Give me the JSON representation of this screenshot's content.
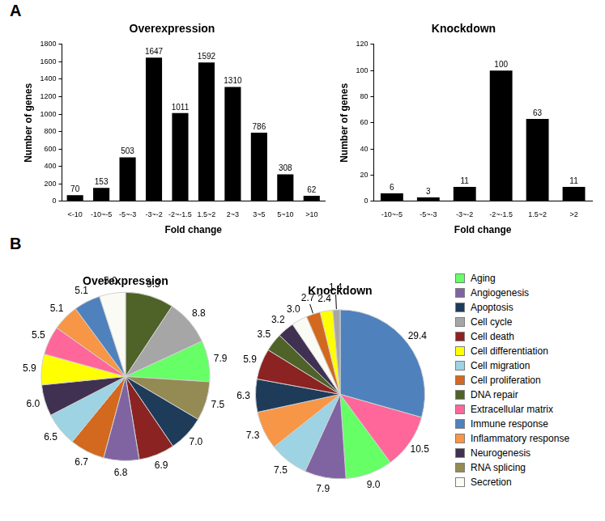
{
  "panel_labels": [
    "A",
    "B"
  ],
  "chart_data": [
    {
      "type": "bar",
      "title": "Overexpression",
      "x_label": "Fold change",
      "y_label": "Number of genes",
      "categories": [
        "<-10",
        "-10~-5",
        "-5~-3",
        "-3~-2",
        "-2~-1.5",
        "1.5~2",
        "2~3",
        "3~5",
        "5~10",
        ">10"
      ],
      "values": [
        70,
        153,
        503,
        1647,
        1011,
        1592,
        1310,
        786,
        308,
        62
      ],
      "color": "#000000",
      "ylim": [
        0,
        1800
      ],
      "yticks": [
        0,
        200,
        400,
        600,
        800,
        1000,
        1200,
        1400,
        1600,
        1800
      ],
      "grid": false,
      "data_labels": true
    },
    {
      "type": "bar",
      "title": "Knockdown",
      "x_label": "Fold change",
      "y_label": "Number of genes",
      "categories": [
        "-10~-5",
        "-5~-3",
        "-3~-2",
        "-2~-1.5",
        "1.5~2",
        ">2"
      ],
      "values": [
        6,
        3,
        11,
        100,
        63,
        11
      ],
      "color": "#000000",
      "ylim": [
        0,
        120
      ],
      "yticks": [
        0,
        20,
        40,
        60,
        80,
        100,
        120
      ],
      "grid": false,
      "data_labels": true
    },
    {
      "type": "pie",
      "title": "Overexpression",
      "categories": [
        "DNA repair",
        "Cell cycle",
        "Aging",
        "RNA splicing",
        "Apoptosis",
        "Cell death",
        "Angiogenesis",
        "Cell proliferation",
        "Cell migration",
        "Neurogenesis",
        "Cell differentiation",
        "Extracellular matrix",
        "Inflammatory response",
        "Immune response",
        "Secretion"
      ],
      "values": [
        9.3,
        8.8,
        7.9,
        7.5,
        7.0,
        6.9,
        6.8,
        6.7,
        6.5,
        6.0,
        5.9,
        5.5,
        5.1,
        5.1,
        5.0
      ],
      "value_labels": [
        "9.3",
        "8.8",
        "7.9",
        "7.5",
        "7.0",
        "6.9",
        "6.8",
        "6.7",
        "6.5",
        "6.0",
        "5.9",
        "5.5",
        "5.1",
        "5.1",
        "5.0"
      ],
      "colors": [
        "#4f6228",
        "#a6a6a6",
        "#66ff66",
        "#948a54",
        "#1f3b5a",
        "#8b2323",
        "#8064a2",
        "#d2691e",
        "#9dd3e3",
        "#403152",
        "#ffff00",
        "#ff6699",
        "#f79646",
        "#4f81bd",
        "#fbfbf5"
      ],
      "data_labels": true,
      "legend": "right"
    },
    {
      "type": "pie",
      "title": "Knockdown",
      "categories": [
        "Immune response",
        "Extracellular matrix",
        "Aging",
        "Angiogenesis",
        "Cell migration",
        "Inflammatory response",
        "Apoptosis",
        "Cell death",
        "DNA repair",
        "Neurogenesis",
        "Secretion",
        "Cell proliferation",
        "Cell differentiation",
        "Cell cycle"
      ],
      "values": [
        29.4,
        10.5,
        9.0,
        7.9,
        7.5,
        7.3,
        6.3,
        5.9,
        3.5,
        3.2,
        3.0,
        2.7,
        2.4,
        1.4
      ],
      "value_labels": [
        "29.4",
        "10.5",
        "9.0",
        "7.9",
        "7.5",
        "7.3",
        "6.3",
        "5.9",
        "3.5",
        "3.2",
        "3.0",
        "2.7",
        "2.4",
        "1.4"
      ],
      "colors": [
        "#4f81bd",
        "#ff6699",
        "#66ff66",
        "#8064a2",
        "#9dd3e3",
        "#f79646",
        "#1f3b5a",
        "#8b2323",
        "#4f6228",
        "#403152",
        "#fbfbf5",
        "#d2691e",
        "#ffff00",
        "#a6a6a6"
      ],
      "data_labels": true
    }
  ]
}
